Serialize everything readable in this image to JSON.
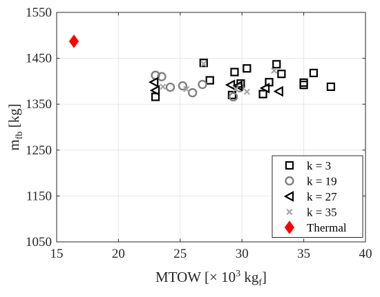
{
  "chart_data": {
    "type": "scatter",
    "xlabel": {
      "text": "MTOW [",
      "mult": "×",
      "ten": " 10",
      "exp": "3",
      "unit": " kg",
      "sub": "f",
      "close": "]"
    },
    "ylabel": {
      "text": "m",
      "sub": "fb",
      "rest": " [kg]"
    },
    "xlim": [
      15,
      40
    ],
    "ylim": [
      1050,
      1550
    ],
    "xticks": [
      15,
      20,
      25,
      30,
      35,
      40
    ],
    "yticks": [
      1050,
      1150,
      1250,
      1350,
      1450,
      1550
    ],
    "grid": true,
    "legend_position": "bottom-right",
    "series": [
      {
        "name": "k = 3",
        "marker": "square",
        "color": "#000000",
        "points": [
          [
            23.0,
            1366
          ],
          [
            26.9,
            1440
          ],
          [
            27.4,
            1402
          ],
          [
            29.2,
            1370
          ],
          [
            29.4,
            1420
          ],
          [
            29.9,
            1395
          ],
          [
            30.4,
            1428
          ],
          [
            31.7,
            1372
          ],
          [
            32.2,
            1398
          ],
          [
            32.8,
            1437
          ],
          [
            33.2,
            1416
          ],
          [
            35.0,
            1392
          ],
          [
            35.0,
            1397
          ],
          [
            35.8,
            1418
          ],
          [
            37.2,
            1388
          ]
        ]
      },
      {
        "name": "k = 19",
        "marker": "circle",
        "color": "#808080",
        "points": [
          [
            23.0,
            1413
          ],
          [
            23.5,
            1410
          ],
          [
            24.2,
            1387
          ],
          [
            25.2,
            1390
          ],
          [
            26.0,
            1375
          ],
          [
            26.8,
            1393
          ],
          [
            29.3,
            1366
          ],
          [
            29.8,
            1386
          ]
        ]
      },
      {
        "name": "k = 27",
        "marker": "triangle-left",
        "color": "#000000",
        "points": [
          [
            22.9,
            1398
          ],
          [
            23.0,
            1380
          ],
          [
            29.1,
            1392
          ],
          [
            29.7,
            1390
          ],
          [
            31.9,
            1385
          ],
          [
            33.0,
            1378
          ]
        ]
      },
      {
        "name": "k = 35",
        "marker": "x",
        "color": "#a6a6a6",
        "points": [
          [
            23.6,
            1388
          ],
          [
            25.5,
            1383
          ],
          [
            26.9,
            1438
          ],
          [
            29.5,
            1383
          ],
          [
            30.4,
            1377
          ],
          [
            32.6,
            1423
          ]
        ]
      },
      {
        "name": "Thermal",
        "marker": "diamond",
        "color": "#ff0000",
        "points": [
          [
            16.4,
            1487
          ]
        ]
      }
    ]
  }
}
